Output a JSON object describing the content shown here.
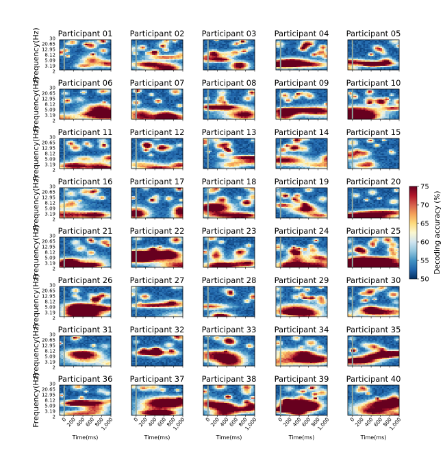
{
  "chart_data": {
    "type": "heatmap",
    "layout": "8x5 grid of time-frequency decoding maps",
    "panels": [
      {
        "title": "Participant 01"
      },
      {
        "title": "Participant 02"
      },
      {
        "title": "Participant 03"
      },
      {
        "title": "Participant 04"
      },
      {
        "title": "Participant 05"
      },
      {
        "title": "Participant 06"
      },
      {
        "title": "Participant 07"
      },
      {
        "title": "Participant 08"
      },
      {
        "title": "Participant 09"
      },
      {
        "title": "Participant 10"
      },
      {
        "title": "Participant 11"
      },
      {
        "title": "Participant 12"
      },
      {
        "title": "Participant 13"
      },
      {
        "title": "Participant 14"
      },
      {
        "title": "Participant 15"
      },
      {
        "title": "Participant 16"
      },
      {
        "title": "Participant 17"
      },
      {
        "title": "Participant 18"
      },
      {
        "title": "Participant 19"
      },
      {
        "title": "Participant 20"
      },
      {
        "title": "Participant 21"
      },
      {
        "title": "Participant 22"
      },
      {
        "title": "Participant 23"
      },
      {
        "title": "Participant 24"
      },
      {
        "title": "Participant 25"
      },
      {
        "title": "Participant 26"
      },
      {
        "title": "Participant 27"
      },
      {
        "title": "Participant 28"
      },
      {
        "title": "Participant 29"
      },
      {
        "title": "Participant 30"
      },
      {
        "title": "Participant 31"
      },
      {
        "title": "Participant 32"
      },
      {
        "title": "Participant 33"
      },
      {
        "title": "Participant 34"
      },
      {
        "title": "Participant 35"
      },
      {
        "title": "Participant 36"
      },
      {
        "title": "Participant 37"
      },
      {
        "title": "Participant 38"
      },
      {
        "title": "Participant 39"
      },
      {
        "title": "Participant 40"
      }
    ],
    "ylabel": "Frequency(Hz)",
    "xlabel": "Time(ms)",
    "yticks": [
      "30",
      "20.65",
      "12.95",
      "8.12",
      "5.09",
      "3.19",
      "2"
    ],
    "xticks": [
      "0",
      "200",
      "400",
      "600",
      "800",
      "1,000"
    ],
    "xlim": [
      -100,
      1000
    ],
    "colorbar": {
      "label": "Decoding accuracy (%)",
      "ticks": [
        "75",
        "70",
        "65",
        "60",
        "55",
        "50"
      ],
      "range": [
        50,
        75
      ],
      "colormap": [
        "#053061",
        "#2166ac",
        "#4393c3",
        "#92c5de",
        "#d1e5f0",
        "#fbf7d0",
        "#fddb7c",
        "#f4a25a",
        "#d6604d",
        "#b2182b",
        "#67001f"
      ]
    },
    "stimulus_onset_ms": 0,
    "onset_line_color": "#8fa8a0"
  }
}
